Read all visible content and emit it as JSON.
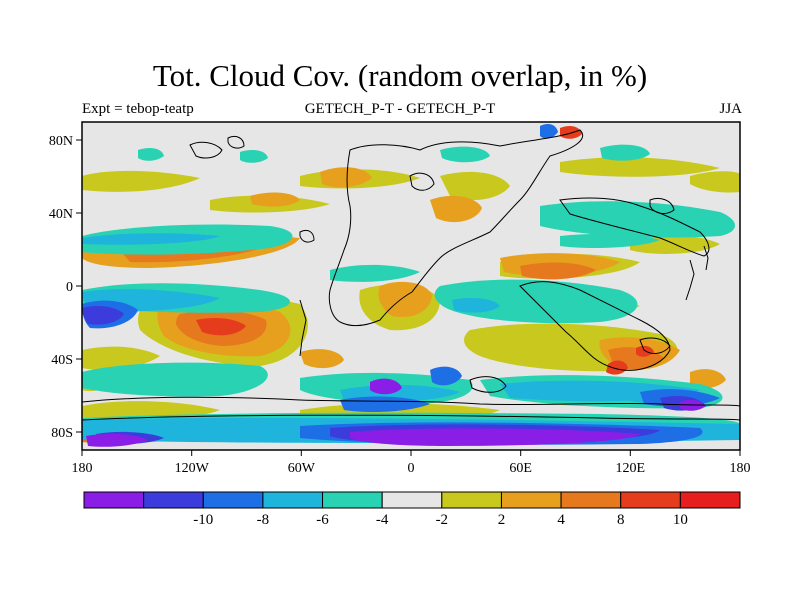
{
  "figure": {
    "title": "Tot. Cloud Cov. (random overlap, in %)",
    "left_label": "Expt = tebop-teatp",
    "center_label": "GETECH_P-T - GETECH_P-T",
    "right_label": "JJA"
  },
  "axes": {
    "lon_ticks": [
      "180",
      "120W",
      "60W",
      "0",
      "60E",
      "120E",
      "180"
    ],
    "lat_ticks": [
      "80N",
      "40N",
      "0",
      "40S",
      "80S"
    ]
  },
  "colorbar": {
    "colors": [
      "#8a1ee6",
      "#3c3cdc",
      "#1e6ee6",
      "#1eb4dc",
      "#2ad2b4",
      "#e6e6e6",
      "#c8c81e",
      "#e6a01e",
      "#e6781e",
      "#e63c1e",
      "#e61e1e"
    ],
    "labels": [
      "-10",
      "-8",
      "-6",
      "-4",
      "-2",
      "2",
      "4",
      "8",
      "10"
    ]
  },
  "colors": {
    "background": "#e6e6e6",
    "coast": "#000000"
  }
}
